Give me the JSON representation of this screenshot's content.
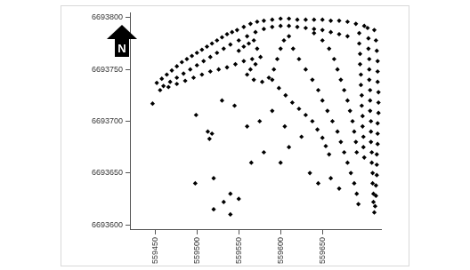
{
  "north_label": "N",
  "chart_data": {
    "type": "scatter",
    "marker": "diamond",
    "color": "#000000",
    "grid": false,
    "xlim": [
      559420,
      559720
    ],
    "xticks": [
      559450,
      559500,
      559550,
      559600,
      559650
    ],
    "ylim": [
      6693595,
      6693805
    ],
    "yticks": [
      6693600,
      6693650,
      6693700,
      6693750,
      6693800
    ],
    "x": [
      559452,
      559458,
      559464,
      559470,
      559476,
      559482,
      559488,
      559494,
      559500,
      559506,
      559512,
      559518,
      559524,
      559530,
      559536,
      559542,
      559548,
      559556,
      559564,
      559572,
      559580,
      559590,
      559600,
      559610,
      559620,
      559630,
      559640,
      559650,
      559660,
      559670,
      559680,
      559690,
      559700,
      559460,
      559468,
      559476,
      559484,
      559492,
      559500,
      559508,
      559516,
      559524,
      559532,
      559540,
      559550,
      559560,
      559570,
      559580,
      559590,
      559600,
      559610,
      559620,
      559630,
      559640,
      559650,
      559660,
      559670,
      559680,
      559456,
      559466,
      559476,
      559486,
      559496,
      559506,
      559516,
      559526,
      559536,
      559546,
      559556,
      559566,
      559550,
      559556,
      559562,
      559568,
      559572,
      559576,
      559570,
      559564,
      559560,
      559568,
      559578,
      559586,
      559592,
      559596,
      559600,
      559604,
      559610,
      559694,
      559694,
      559695,
      559695,
      559696,
      559696,
      559697,
      559697,
      559698,
      559698,
      559699,
      559699,
      559700,
      559704,
      559705,
      559705,
      559706,
      559706,
      559706,
      559707,
      559707,
      559707,
      559708,
      559708,
      559708,
      559709,
      559709,
      559710,
      559710,
      559711,
      559711,
      559712,
      559714,
      559715,
      559716,
      559716,
      559716,
      559717,
      559717,
      559717,
      559716,
      559716,
      559716,
      559715,
      559715,
      559715,
      559714,
      559714,
      559713,
      559712,
      559615,
      559622,
      559630,
      559638,
      559645,
      559650,
      559656,
      559662,
      559668,
      559672,
      559676,
      559680,
      559684,
      559688,
      559691,
      559693,
      559640,
      559650,
      559658,
      559664,
      559668,
      559672,
      559676,
      559680,
      559683,
      559686,
      559688,
      559690,
      559691,
      559590,
      559598,
      559606,
      559614,
      559622,
      559630,
      559638,
      559644,
      559650,
      559654,
      559658,
      559447,
      559499,
      559513,
      559518,
      559515,
      559498,
      559520,
      559540,
      559550,
      559532,
      559565,
      559580,
      559600,
      559610,
      559625,
      559635,
      559645,
      559660,
      559670,
      559560,
      559575,
      559590,
      559605,
      559545,
      559530,
      559540,
      559520
    ],
    "y": [
      6693737,
      6693741,
      6693745,
      6693749,
      6693753,
      6693757,
      6693760,
      6693763,
      6693766,
      6693769,
      6693772,
      6693775,
      6693778,
      6693781,
      6693784,
      6693786,
      6693788,
      6693791,
      6693794,
      6693796,
      6693797,
      6693798,
      6693799,
      6693799,
      6693798,
      6693798,
      6693798,
      6693798,
      6693797,
      6693797,
      6693796,
      6693794,
      6693792,
      6693734,
      6693738,
      6693742,
      6693746,
      6693750,
      6693754,
      6693758,
      6693762,
      6693766,
      6693770,
      6693774,
      6693778,
      6693782,
      6693786,
      6693789,
      6693791,
      6693792,
      6693792,
      6693791,
      6693790,
      6693789,
      6693788,
      6693786,
      6693784,
      6693782,
      6693730,
      6693733,
      6693736,
      6693739,
      6693742,
      6693745,
      6693748,
      6693750,
      6693752,
      6693755,
      6693758,
      6693760,
      6693768,
      6693772,
      6693775,
      6693778,
      6693770,
      6693762,
      6693755,
      6693750,
      6693745,
      6693740,
      6693738,
      6693742,
      6693750,
      6693760,
      6693770,
      6693778,
      6693782,
      6693785,
      6693775,
      6693765,
      6693755,
      6693745,
      6693735,
      6693725,
      6693715,
      6693705,
      6693695,
      6693685,
      6693675,
      6693665,
      6693790,
      6693780,
      6693770,
      6693760,
      6693750,
      6693740,
      6693730,
      6693720,
      6693710,
      6693700,
      6693690,
      6693680,
      6693670,
      6693660,
      6693650,
      6693640,
      6693630,
      6693622,
      6693788,
      6693778,
      6693768,
      6693758,
      6693748,
      6693738,
      6693728,
      6693718,
      6693708,
      6693698,
      6693688,
      6693678,
      6693668,
      6693658,
      6693648,
      6693638,
      6693628,
      6693618,
      6693612,
      6693770,
      6693760,
      6693750,
      6693740,
      6693730,
      6693720,
      6693710,
      6693700,
      6693690,
      6693680,
      6693670,
      6693660,
      6693650,
      6693640,
      6693630,
      6693620,
      6693785,
      6693778,
      6693770,
      6693760,
      6693750,
      6693740,
      6693730,
      6693720,
      6693710,
      6693700,
      6693690,
      6693680,
      6693670,
      6693740,
      6693732,
      6693725,
      6693718,
      6693712,
      6693706,
      6693700,
      6693692,
      6693684,
      6693676,
      6693668,
      6693717,
      6693706,
      6693690,
      6693688,
      6693683,
      6693640,
      6693645,
      6693630,
      6693625,
      6693622,
      6693660,
      6693670,
      6693660,
      6693675,
      6693685,
      6693650,
      6693640,
      6693645,
      6693635,
      6693695,
      6693700,
      6693710,
      6693695,
      6693715,
      6693720,
      6693610,
      6693615
    ]
  }
}
